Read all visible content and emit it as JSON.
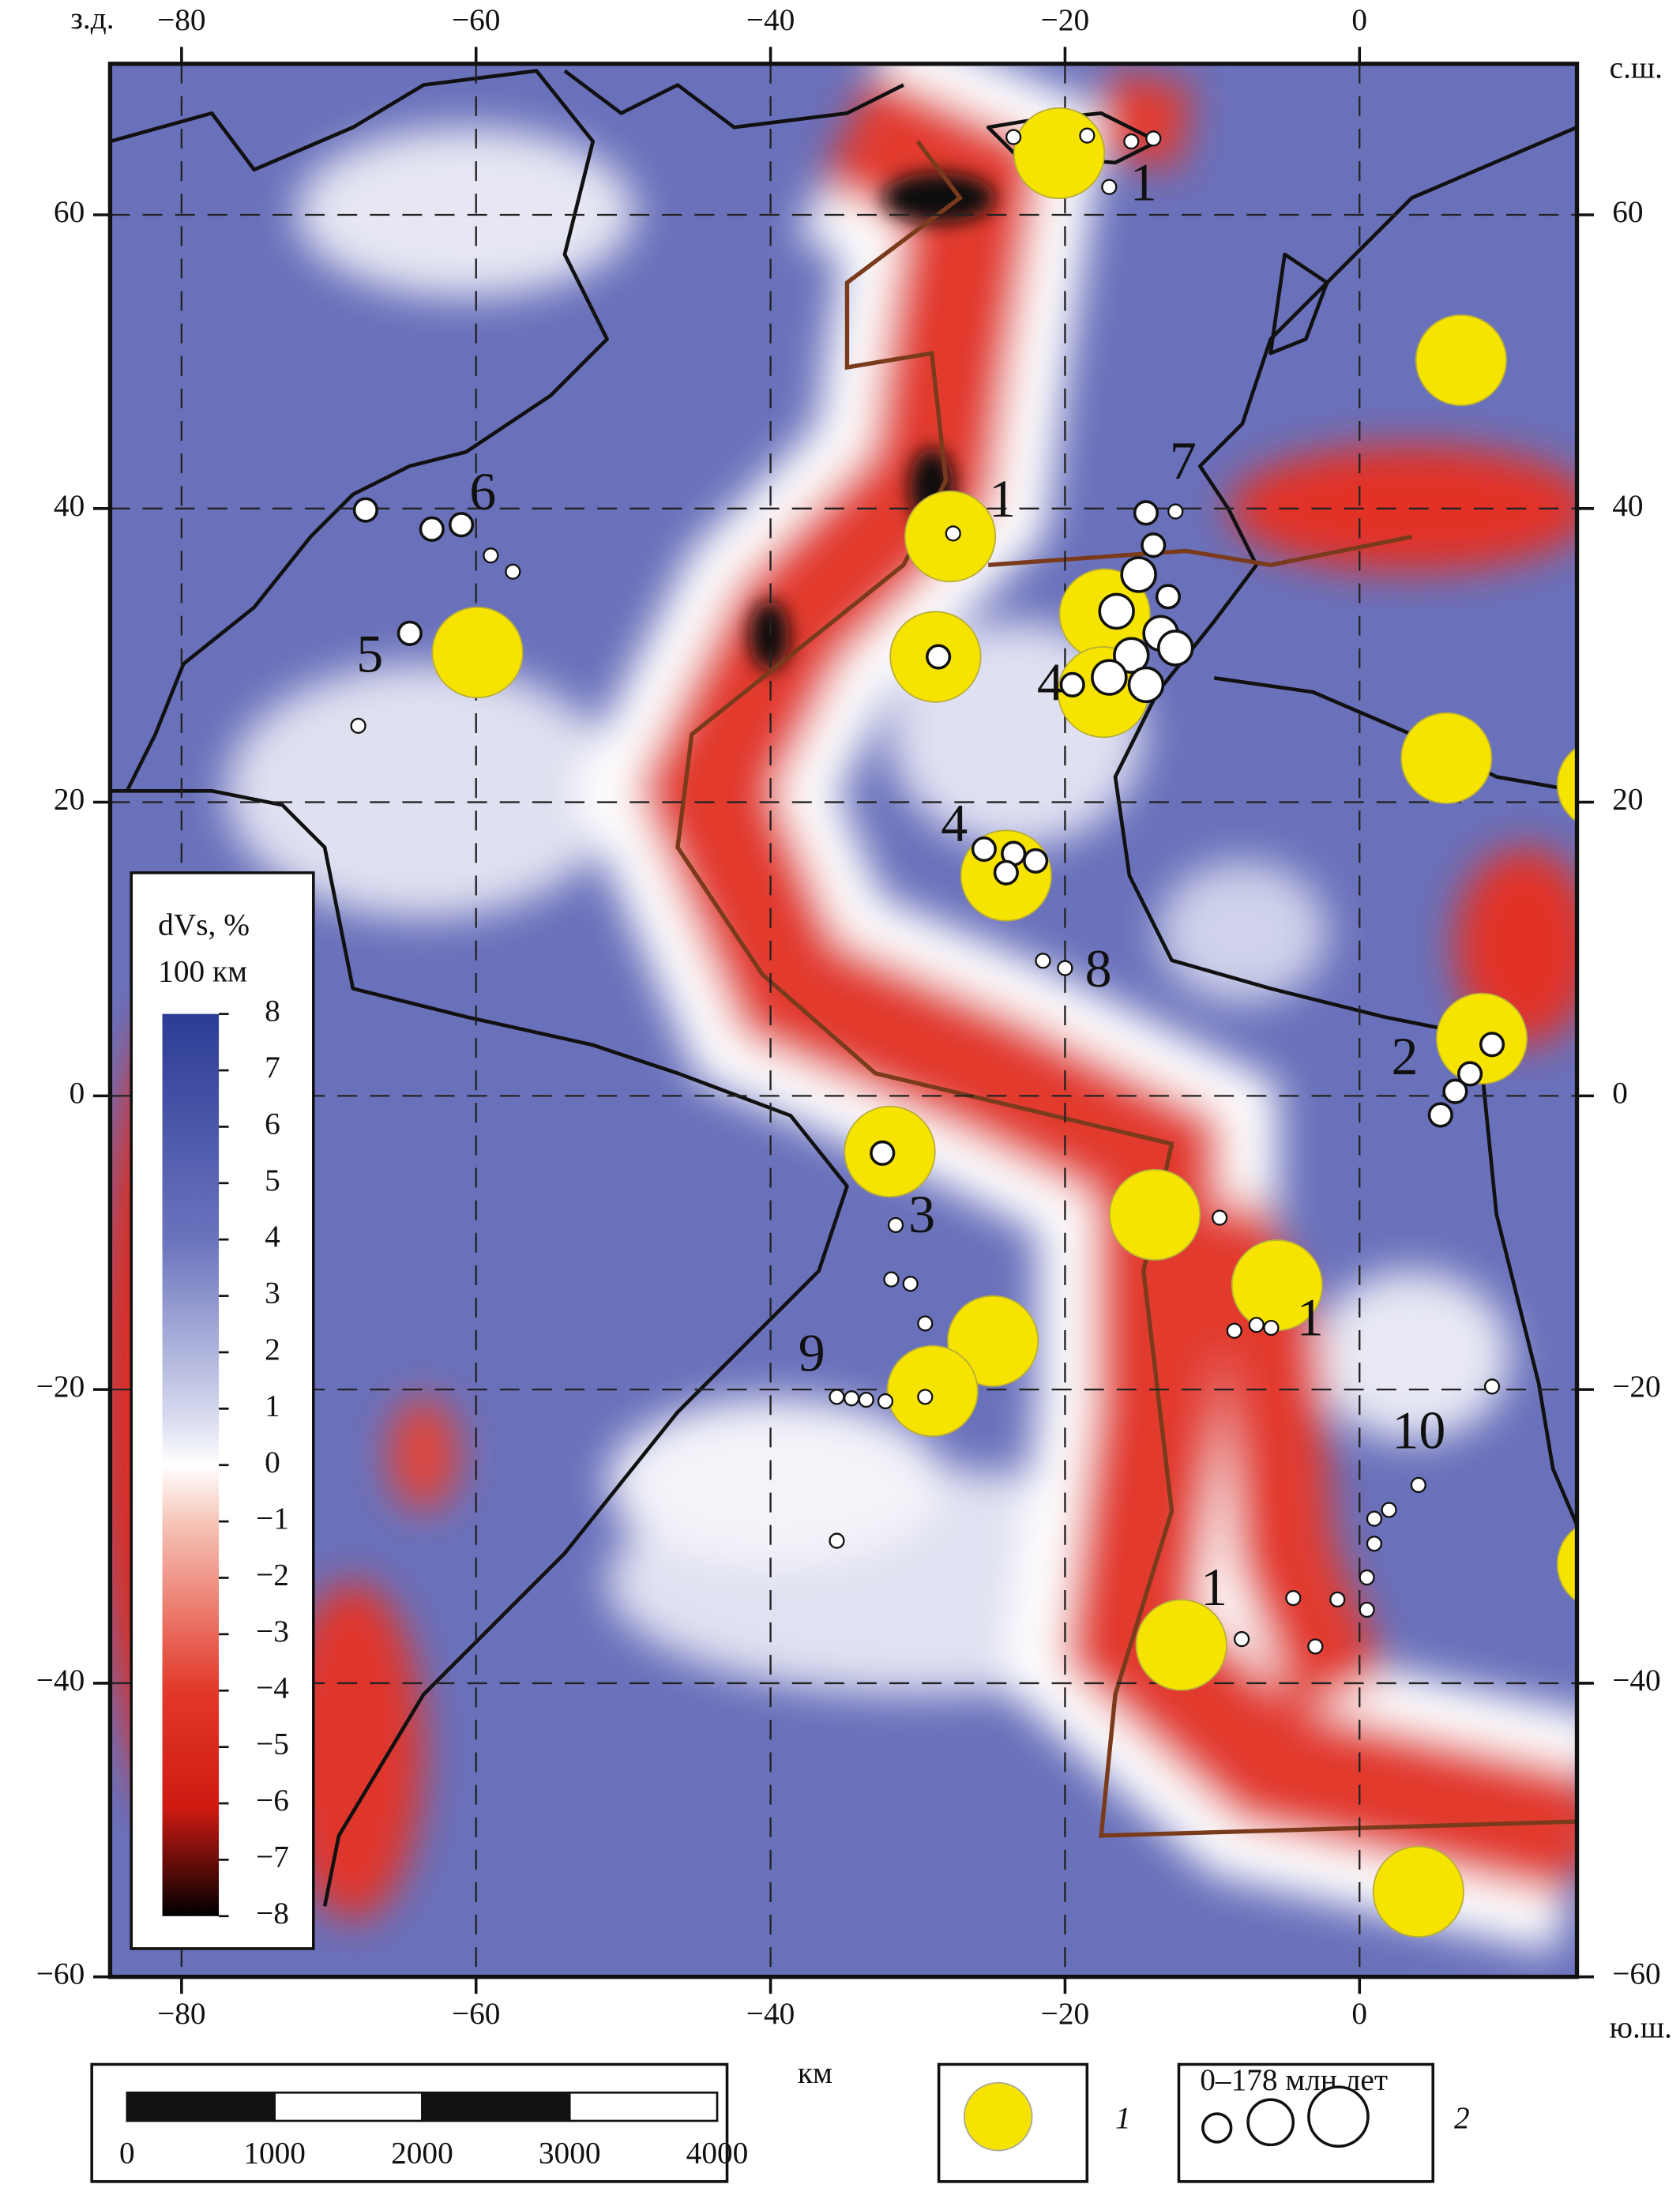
{
  "map": {
    "corner_labels": {
      "west": "з.д.",
      "north": "с.ш.",
      "south": "ю.ш."
    },
    "lon_ticks": [
      {
        "value": -80,
        "label": "−80"
      },
      {
        "value": -60,
        "label": "−60"
      },
      {
        "value": -40,
        "label": "−40"
      },
      {
        "value": -20,
        "label": "−20"
      },
      0
    ],
    "lat_ticks": [
      60,
      40,
      20,
      0,
      {
        "value": -20,
        "label": "−20"
      },
      {
        "value": -40,
        "label": "−40"
      },
      {
        "value": -60,
        "label": "−60"
      }
    ],
    "colorbar": {
      "title": "dVs, %",
      "depth": "100 км",
      "ticks": [
        8,
        7,
        6,
        5,
        4,
        3,
        2,
        1,
        0,
        {
          "value": -1,
          "label": "−1"
        },
        {
          "value": -2,
          "label": "−2"
        },
        {
          "value": -3,
          "label": "−3"
        },
        {
          "value": -4,
          "label": "−4"
        },
        {
          "value": -5,
          "label": "−5"
        },
        {
          "value": -6,
          "label": "−6"
        },
        {
          "value": -7,
          "label": "−7"
        },
        {
          "value": -8,
          "label": "−8"
        }
      ]
    },
    "hotspots": [
      {
        "lon": -20.4,
        "lat": 64.2
      },
      {
        "lon": 6.9,
        "lat": 50.1
      },
      {
        "lon": -27.8,
        "lat": 38.1
      },
      {
        "lon": -59.9,
        "lat": 30.2
      },
      {
        "lon": -28.8,
        "lat": 29.9
      },
      {
        "lon": -17.3,
        "lat": 32.8
      },
      {
        "lon": -17.4,
        "lat": 27.5
      },
      {
        "lon": 5.9,
        "lat": 23.0
      },
      {
        "lon": 16.5,
        "lat": 21.2
      },
      {
        "lon": -24.0,
        "lat": 15.0
      },
      {
        "lon": 8.3,
        "lat": 3.9
      },
      {
        "lon": -31.9,
        "lat": -3.8
      },
      {
        "lon": -13.9,
        "lat": -8.1
      },
      {
        "lon": -5.6,
        "lat": -12.9
      },
      {
        "lon": -24.9,
        "lat": -16.7
      },
      {
        "lon": -29.0,
        "lat": -20.1
      },
      {
        "lon": -12.1,
        "lat": -37.4
      },
      {
        "lon": 4.0,
        "lat": -54.2
      },
      {
        "lon": 16.5,
        "lat": -31.9
      }
    ],
    "volcanoes": [
      {
        "lon": -17.0,
        "lat": 61.9,
        "size": 1
      },
      {
        "lon": -23.5,
        "lat": 65.3,
        "size": 1
      },
      {
        "lon": -18.5,
        "lat": 65.4,
        "size": 1
      },
      {
        "lon": -15.5,
        "lat": 65.0,
        "size": 1
      },
      {
        "lon": -14.0,
        "lat": 65.2,
        "size": 1
      },
      {
        "lon": -67.5,
        "lat": 39.9,
        "size": 2
      },
      {
        "lon": -63.0,
        "lat": 38.6,
        "size": 2
      },
      {
        "lon": -61.0,
        "lat": 38.9,
        "size": 2
      },
      {
        "lon": -59.0,
        "lat": 36.8,
        "size": 1
      },
      {
        "lon": -57.5,
        "lat": 35.7,
        "size": 1
      },
      {
        "lon": -64.5,
        "lat": 31.5,
        "size": 2
      },
      {
        "lon": -68.0,
        "lat": 25.2,
        "size": 1
      },
      {
        "lon": -27.6,
        "lat": 38.3,
        "size": 1
      },
      {
        "lon": -28.6,
        "lat": 29.9,
        "size": 2
      },
      {
        "lon": -14.5,
        "lat": 39.7,
        "size": 2
      },
      {
        "lon": -12.5,
        "lat": 39.8,
        "size": 1
      },
      {
        "lon": -14.0,
        "lat": 37.5,
        "size": 2
      },
      {
        "lon": -15.0,
        "lat": 35.5,
        "size": 3
      },
      {
        "lon": -13.0,
        "lat": 34.0,
        "size": 2
      },
      {
        "lon": -16.5,
        "lat": 33.0,
        "size": 3
      },
      {
        "lon": -13.5,
        "lat": 31.5,
        "size": 3
      },
      {
        "lon": -15.5,
        "lat": 30.0,
        "size": 3
      },
      {
        "lon": -17.0,
        "lat": 28.5,
        "size": 3
      },
      {
        "lon": -14.5,
        "lat": 28.0,
        "size": 3
      },
      {
        "lon": -19.5,
        "lat": 28.0,
        "size": 2
      },
      {
        "lon": -12.5,
        "lat": 30.5,
        "size": 3
      },
      {
        "lon": -25.5,
        "lat": 16.8,
        "size": 2
      },
      {
        "lon": -23.5,
        "lat": 16.5,
        "size": 2
      },
      {
        "lon": -22.0,
        "lat": 16.0,
        "size": 2
      },
      {
        "lon": -24.0,
        "lat": 15.2,
        "size": 2
      },
      {
        "lon": -21.5,
        "lat": 9.2,
        "size": 1
      },
      {
        "lon": -20.0,
        "lat": 8.7,
        "size": 1
      },
      {
        "lon": 9.0,
        "lat": 3.5,
        "size": 2
      },
      {
        "lon": 7.5,
        "lat": 1.5,
        "size": 2
      },
      {
        "lon": 6.5,
        "lat": 0.3,
        "size": 2
      },
      {
        "lon": 5.5,
        "lat": -1.3,
        "size": 2
      },
      {
        "lon": -32.4,
        "lat": -3.9,
        "size": 2
      },
      {
        "lon": -31.5,
        "lat": -8.8,
        "size": 1
      },
      {
        "lon": -30.5,
        "lat": -12.8,
        "size": 1
      },
      {
        "lon": -31.8,
        "lat": -12.5,
        "size": 1
      },
      {
        "lon": -29.5,
        "lat": -15.5,
        "size": 1
      },
      {
        "lon": -35.5,
        "lat": -20.5,
        "size": 1
      },
      {
        "lon": -34.5,
        "lat": -20.6,
        "size": 1
      },
      {
        "lon": -33.5,
        "lat": -20.7,
        "size": 1
      },
      {
        "lon": -32.2,
        "lat": -20.8,
        "size": 1
      },
      {
        "lon": -29.5,
        "lat": -20.5,
        "size": 1
      },
      {
        "lon": -9.5,
        "lat": -8.3,
        "size": 1
      },
      {
        "lon": -8.5,
        "lat": -16.0,
        "size": 1
      },
      {
        "lon": -7.0,
        "lat": -15.6,
        "size": 1
      },
      {
        "lon": -6.0,
        "lat": -15.8,
        "size": 1
      },
      {
        "lon": 4.0,
        "lat": -26.5,
        "size": 1
      },
      {
        "lon": 2.0,
        "lat": -28.2,
        "size": 1
      },
      {
        "lon": 1.0,
        "lat": -28.8,
        "size": 1
      },
      {
        "lon": 1.0,
        "lat": -30.5,
        "size": 1
      },
      {
        "lon": 0.5,
        "lat": -32.8,
        "size": 1
      },
      {
        "lon": -1.5,
        "lat": -34.3,
        "size": 1
      },
      {
        "lon": -4.5,
        "lat": -34.2,
        "size": 1
      },
      {
        "lon": -8.0,
        "lat": -37.0,
        "size": 1
      },
      {
        "lon": -3.0,
        "lat": -37.5,
        "size": 1
      },
      {
        "lon": 0.5,
        "lat": -35.0,
        "size": 1
      },
      {
        "lon": 9.0,
        "lat": -19.8,
        "size": 1
      },
      {
        "lon": -35.5,
        "lat": -30.3,
        "size": 1
      }
    ],
    "region_labels": [
      "1",
      "1",
      "1",
      "1",
      "2",
      "3",
      "4",
      "4",
      "5",
      "6",
      "7",
      "8",
      "9",
      "10"
    ],
    "scale_bar": {
      "unit": "км",
      "ticks": [
        0,
        1000,
        2000,
        3000,
        4000
      ]
    },
    "legend": {
      "hotspot": "1",
      "volcanics": "2",
      "volcanics_age": "0–178 млн лет"
    }
  }
}
